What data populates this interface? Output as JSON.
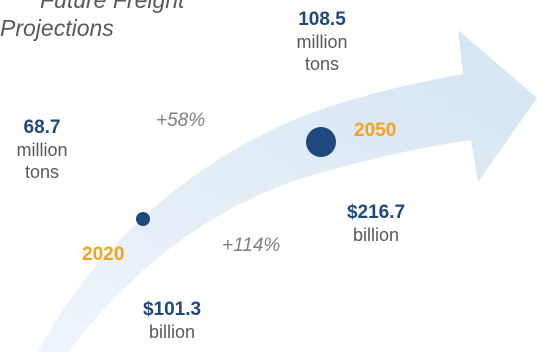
{
  "title": {
    "line1": "Future Freight",
    "line2": "Projections"
  },
  "colors": {
    "arrow": "#dce9f4",
    "dot": "#1f497d",
    "value_text": "#1f497d",
    "year_text": "#f5a31a",
    "unit_text": "#595959",
    "percent_text": "#7f7f7f"
  },
  "years": {
    "start": "2020",
    "end": "2050"
  },
  "tonnage": {
    "start_value": "68.7",
    "start_unit_line1": "million",
    "start_unit_line2": "tons",
    "end_value": "108.5",
    "end_unit_line1": "million",
    "end_unit_line2": "tons",
    "growth": "+58%"
  },
  "value": {
    "start_value": "$101.3",
    "start_unit": "billion",
    "end_value": "$216.7",
    "end_unit": "billion",
    "growth": "+114%"
  }
}
